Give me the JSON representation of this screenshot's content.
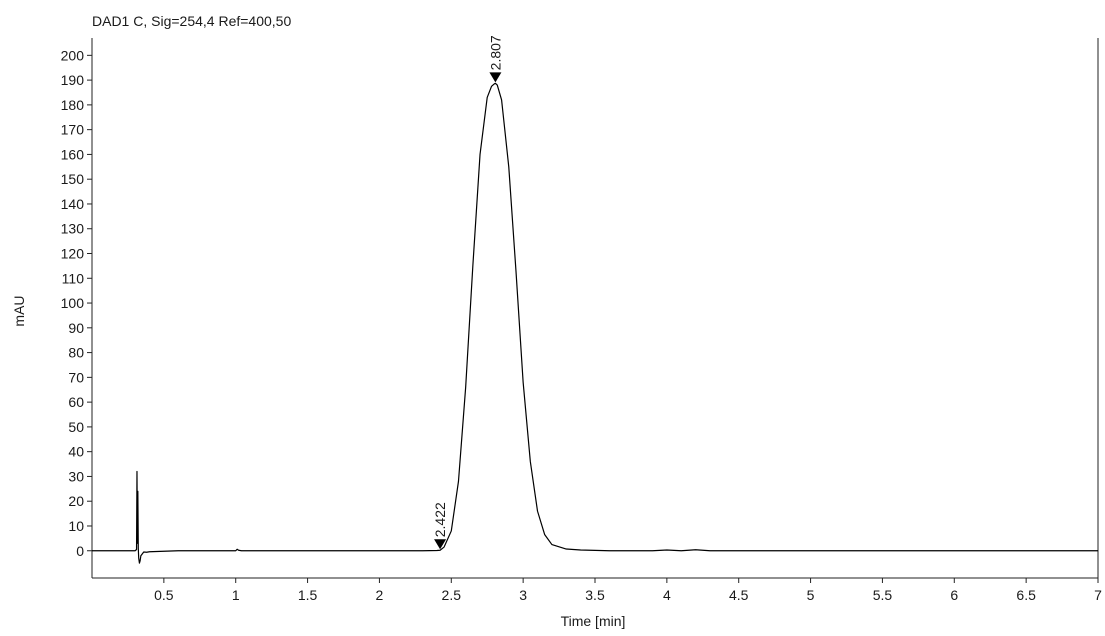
{
  "chart_data": {
    "type": "line",
    "title": "DAD1 C, Sig=254,4 Ref=400,50",
    "xlabel": "Time [min]",
    "ylabel": "mAU",
    "xlim": [
      0.0,
      7.0
    ],
    "ylim": [
      -11,
      207
    ],
    "x_ticks": [
      0.5,
      1,
      1.5,
      2,
      2.5,
      3,
      3.5,
      4,
      4.5,
      5,
      5.5,
      6,
      6.5,
      7
    ],
    "x_tick_labels": [
      "0.5",
      "1",
      "1.5",
      "2",
      "2.5",
      "3",
      "3.5",
      "4",
      "4.5",
      "5",
      "5.5",
      "6",
      "6.5",
      "7"
    ],
    "y_ticks": [
      0,
      10,
      20,
      30,
      40,
      50,
      60,
      70,
      80,
      90,
      100,
      110,
      120,
      130,
      140,
      150,
      160,
      170,
      180,
      190,
      200
    ],
    "y_tick_labels": [
      "0",
      "10",
      "20",
      "30",
      "40",
      "50",
      "60",
      "70",
      "80",
      "90",
      "100",
      "110",
      "120",
      "130",
      "140",
      "150",
      "160",
      "170",
      "180",
      "190",
      "200"
    ],
    "grid": false,
    "series": [
      {
        "color": "#000000",
        "x": [
          0.0,
          0.2,
          0.3,
          0.31,
          0.313,
          0.316,
          0.319,
          0.322,
          0.325,
          0.33,
          0.335,
          0.34,
          0.36,
          0.38,
          0.4,
          0.45,
          0.5,
          0.55,
          0.6,
          0.8,
          1.0,
          1.01,
          1.02,
          1.04,
          1.2,
          1.5,
          2.0,
          2.3,
          2.4,
          2.422,
          2.45,
          2.5,
          2.55,
          2.6,
          2.65,
          2.7,
          2.75,
          2.78,
          2.8,
          2.807,
          2.82,
          2.85,
          2.9,
          2.95,
          3.0,
          3.05,
          3.1,
          3.15,
          3.2,
          3.3,
          3.4,
          3.6,
          3.9,
          4.0,
          4.1,
          4.2,
          4.25,
          4.3,
          4.5,
          5.0,
          6.0,
          7.0
        ],
        "y": [
          0,
          0,
          0,
          0.5,
          32,
          3,
          24,
          1,
          -3,
          -5,
          -4,
          -2,
          -0.5,
          -0.6,
          -0.4,
          -0.3,
          -0.2,
          -0.1,
          0,
          0,
          0,
          0.6,
          0.2,
          0,
          0,
          0,
          0,
          0,
          0.1,
          0.2,
          1.5,
          8,
          28,
          66,
          115,
          160,
          183,
          187.5,
          188.5,
          188.7,
          188,
          182,
          155,
          113,
          68,
          36,
          16,
          6.5,
          2.5,
          0.7,
          0.3,
          0,
          0,
          0.3,
          0,
          0.4,
          0.2,
          0,
          0,
          0,
          0,
          0
        ]
      }
    ],
    "annotations": [
      {
        "label": "2.422",
        "x": 2.422,
        "y": 0.2
      },
      {
        "label": "2.807",
        "x": 2.807,
        "y": 188.7
      }
    ]
  }
}
